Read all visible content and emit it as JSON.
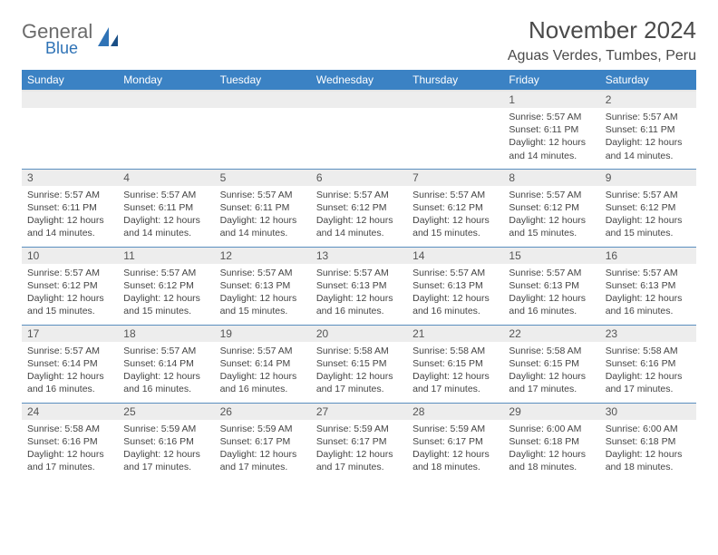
{
  "logo": {
    "general": "General",
    "blue": "Blue"
  },
  "title": "November 2024",
  "location": "Aguas Verdes, Tumbes, Peru",
  "colors": {
    "header_bg": "#3b82c4",
    "header_text": "#ffffff",
    "row_divider": "#5a8fbf",
    "daynum_bg": "#ededed",
    "text": "#444444",
    "title_text": "#4a4a4a",
    "logo_blue": "#2f73b6",
    "logo_gray": "#6b6b6b"
  },
  "weekday_labels": [
    "Sunday",
    "Monday",
    "Tuesday",
    "Wednesday",
    "Thursday",
    "Friday",
    "Saturday"
  ],
  "weeks": [
    [
      {
        "empty": true
      },
      {
        "empty": true
      },
      {
        "empty": true
      },
      {
        "empty": true
      },
      {
        "empty": true
      },
      {
        "day": "1",
        "sunrise": "Sunrise: 5:57 AM",
        "sunset": "Sunset: 6:11 PM",
        "daylight1": "Daylight: 12 hours",
        "daylight2": "and 14 minutes."
      },
      {
        "day": "2",
        "sunrise": "Sunrise: 5:57 AM",
        "sunset": "Sunset: 6:11 PM",
        "daylight1": "Daylight: 12 hours",
        "daylight2": "and 14 minutes."
      }
    ],
    [
      {
        "day": "3",
        "sunrise": "Sunrise: 5:57 AM",
        "sunset": "Sunset: 6:11 PM",
        "daylight1": "Daylight: 12 hours",
        "daylight2": "and 14 minutes."
      },
      {
        "day": "4",
        "sunrise": "Sunrise: 5:57 AM",
        "sunset": "Sunset: 6:11 PM",
        "daylight1": "Daylight: 12 hours",
        "daylight2": "and 14 minutes."
      },
      {
        "day": "5",
        "sunrise": "Sunrise: 5:57 AM",
        "sunset": "Sunset: 6:11 PM",
        "daylight1": "Daylight: 12 hours",
        "daylight2": "and 14 minutes."
      },
      {
        "day": "6",
        "sunrise": "Sunrise: 5:57 AM",
        "sunset": "Sunset: 6:12 PM",
        "daylight1": "Daylight: 12 hours",
        "daylight2": "and 14 minutes."
      },
      {
        "day": "7",
        "sunrise": "Sunrise: 5:57 AM",
        "sunset": "Sunset: 6:12 PM",
        "daylight1": "Daylight: 12 hours",
        "daylight2": "and 15 minutes."
      },
      {
        "day": "8",
        "sunrise": "Sunrise: 5:57 AM",
        "sunset": "Sunset: 6:12 PM",
        "daylight1": "Daylight: 12 hours",
        "daylight2": "and 15 minutes."
      },
      {
        "day": "9",
        "sunrise": "Sunrise: 5:57 AM",
        "sunset": "Sunset: 6:12 PM",
        "daylight1": "Daylight: 12 hours",
        "daylight2": "and 15 minutes."
      }
    ],
    [
      {
        "day": "10",
        "sunrise": "Sunrise: 5:57 AM",
        "sunset": "Sunset: 6:12 PM",
        "daylight1": "Daylight: 12 hours",
        "daylight2": "and 15 minutes."
      },
      {
        "day": "11",
        "sunrise": "Sunrise: 5:57 AM",
        "sunset": "Sunset: 6:12 PM",
        "daylight1": "Daylight: 12 hours",
        "daylight2": "and 15 minutes."
      },
      {
        "day": "12",
        "sunrise": "Sunrise: 5:57 AM",
        "sunset": "Sunset: 6:13 PM",
        "daylight1": "Daylight: 12 hours",
        "daylight2": "and 15 minutes."
      },
      {
        "day": "13",
        "sunrise": "Sunrise: 5:57 AM",
        "sunset": "Sunset: 6:13 PM",
        "daylight1": "Daylight: 12 hours",
        "daylight2": "and 16 minutes."
      },
      {
        "day": "14",
        "sunrise": "Sunrise: 5:57 AM",
        "sunset": "Sunset: 6:13 PM",
        "daylight1": "Daylight: 12 hours",
        "daylight2": "and 16 minutes."
      },
      {
        "day": "15",
        "sunrise": "Sunrise: 5:57 AM",
        "sunset": "Sunset: 6:13 PM",
        "daylight1": "Daylight: 12 hours",
        "daylight2": "and 16 minutes."
      },
      {
        "day": "16",
        "sunrise": "Sunrise: 5:57 AM",
        "sunset": "Sunset: 6:13 PM",
        "daylight1": "Daylight: 12 hours",
        "daylight2": "and 16 minutes."
      }
    ],
    [
      {
        "day": "17",
        "sunrise": "Sunrise: 5:57 AM",
        "sunset": "Sunset: 6:14 PM",
        "daylight1": "Daylight: 12 hours",
        "daylight2": "and 16 minutes."
      },
      {
        "day": "18",
        "sunrise": "Sunrise: 5:57 AM",
        "sunset": "Sunset: 6:14 PM",
        "daylight1": "Daylight: 12 hours",
        "daylight2": "and 16 minutes."
      },
      {
        "day": "19",
        "sunrise": "Sunrise: 5:57 AM",
        "sunset": "Sunset: 6:14 PM",
        "daylight1": "Daylight: 12 hours",
        "daylight2": "and 16 minutes."
      },
      {
        "day": "20",
        "sunrise": "Sunrise: 5:58 AM",
        "sunset": "Sunset: 6:15 PM",
        "daylight1": "Daylight: 12 hours",
        "daylight2": "and 17 minutes."
      },
      {
        "day": "21",
        "sunrise": "Sunrise: 5:58 AM",
        "sunset": "Sunset: 6:15 PM",
        "daylight1": "Daylight: 12 hours",
        "daylight2": "and 17 minutes."
      },
      {
        "day": "22",
        "sunrise": "Sunrise: 5:58 AM",
        "sunset": "Sunset: 6:15 PM",
        "daylight1": "Daylight: 12 hours",
        "daylight2": "and 17 minutes."
      },
      {
        "day": "23",
        "sunrise": "Sunrise: 5:58 AM",
        "sunset": "Sunset: 6:16 PM",
        "daylight1": "Daylight: 12 hours",
        "daylight2": "and 17 minutes."
      }
    ],
    [
      {
        "day": "24",
        "sunrise": "Sunrise: 5:58 AM",
        "sunset": "Sunset: 6:16 PM",
        "daylight1": "Daylight: 12 hours",
        "daylight2": "and 17 minutes."
      },
      {
        "day": "25",
        "sunrise": "Sunrise: 5:59 AM",
        "sunset": "Sunset: 6:16 PM",
        "daylight1": "Daylight: 12 hours",
        "daylight2": "and 17 minutes."
      },
      {
        "day": "26",
        "sunrise": "Sunrise: 5:59 AM",
        "sunset": "Sunset: 6:17 PM",
        "daylight1": "Daylight: 12 hours",
        "daylight2": "and 17 minutes."
      },
      {
        "day": "27",
        "sunrise": "Sunrise: 5:59 AM",
        "sunset": "Sunset: 6:17 PM",
        "daylight1": "Daylight: 12 hours",
        "daylight2": "and 17 minutes."
      },
      {
        "day": "28",
        "sunrise": "Sunrise: 5:59 AM",
        "sunset": "Sunset: 6:17 PM",
        "daylight1": "Daylight: 12 hours",
        "daylight2": "and 18 minutes."
      },
      {
        "day": "29",
        "sunrise": "Sunrise: 6:00 AM",
        "sunset": "Sunset: 6:18 PM",
        "daylight1": "Daylight: 12 hours",
        "daylight2": "and 18 minutes."
      },
      {
        "day": "30",
        "sunrise": "Sunrise: 6:00 AM",
        "sunset": "Sunset: 6:18 PM",
        "daylight1": "Daylight: 12 hours",
        "daylight2": "and 18 minutes."
      }
    ]
  ]
}
